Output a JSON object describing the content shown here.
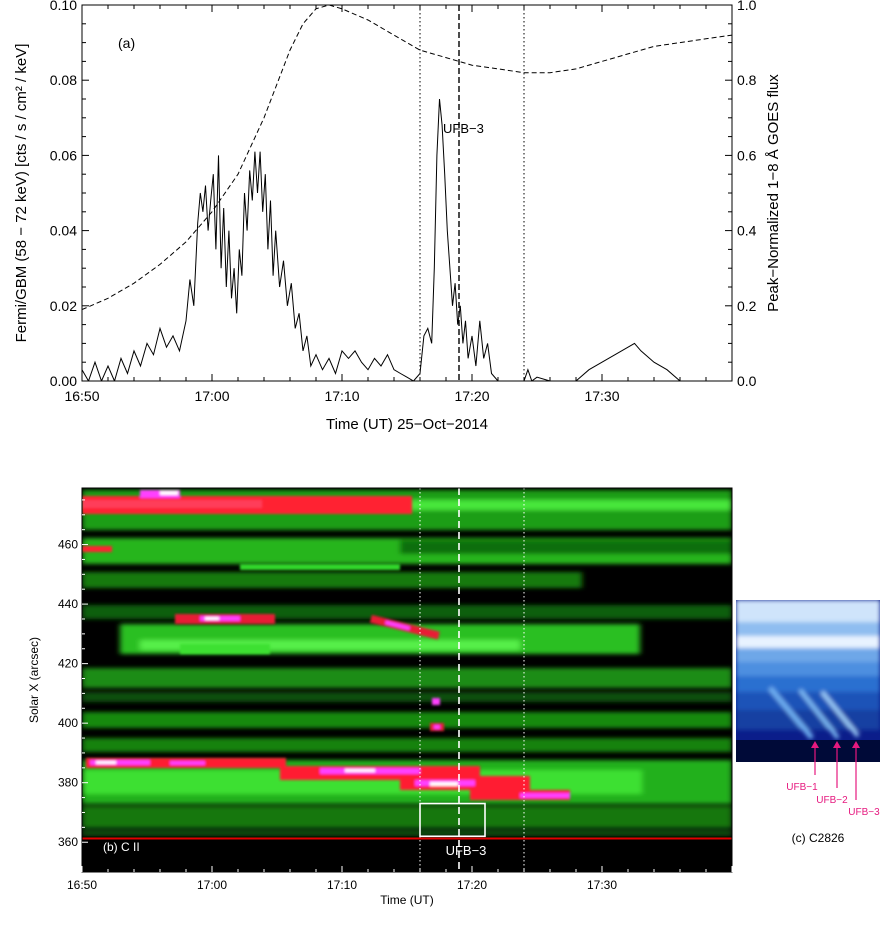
{
  "chart_data": [
    {
      "id": "panel-a",
      "type": "line",
      "panel_label": "(a)",
      "xlabel": "Time (UT) 25−Oct−2014",
      "ylabel": "Fermi/GBM (58 − 72 keV) [cts / s / cm² / keV]",
      "y2label": "Peak−Normalized 1−8 Å GOES flux",
      "xlim": [
        "16:50",
        "17:40"
      ],
      "ylim": [
        0,
        0.1
      ],
      "y2lim": [
        0,
        1.0
      ],
      "xticks": [
        "16:50",
        "17:00",
        "17:10",
        "17:20",
        "17:30"
      ],
      "yticks": [
        "0.00",
        "0.02",
        "0.04",
        "0.06",
        "0.08",
        "0.10"
      ],
      "y2ticks": [
        "0.0",
        "0.2",
        "0.4",
        "0.6",
        "0.8",
        "1.0"
      ],
      "vlines_dotted": [
        "17:16",
        "17:24"
      ],
      "vline_dashed": "17:19",
      "annotation": "UFB−3",
      "series": [
        {
          "style": "solid",
          "axis": "left",
          "points": [
            [
              "16:50.0",
              0.003
            ],
            [
              "16:50.5",
              0.0
            ],
            [
              "16:51.0",
              0.005
            ],
            [
              "16:51.5",
              0.0
            ],
            [
              "16:52.0",
              0.004
            ],
            [
              "16:52.5",
              0.0
            ],
            [
              "16:53.0",
              0.006
            ],
            [
              "16:53.5",
              0.002
            ],
            [
              "16:54.0",
              0.008
            ],
            [
              "16:54.5",
              0.004
            ],
            [
              "16:55.0",
              0.01
            ],
            [
              "16:55.5",
              0.007
            ],
            [
              "16:56.0",
              0.014
            ],
            [
              "16:56.5",
              0.009
            ],
            [
              "16:57.0",
              0.012
            ],
            [
              "16:57.5",
              0.008
            ],
            [
              "16:58.0",
              0.016
            ],
            [
              "16:58.3",
              0.027
            ],
            [
              "16:58.6",
              0.02
            ],
            [
              "16:58.9",
              0.042
            ],
            [
              "16:59.1",
              0.05
            ],
            [
              "16:59.3",
              0.045
            ],
            [
              "16:59.5",
              0.052
            ],
            [
              "16:59.7",
              0.04
            ],
            [
              "16:59.9",
              0.048
            ],
            [
              "17:00.1",
              0.055
            ],
            [
              "17:00.3",
              0.035
            ],
            [
              "17:00.5",
              0.06
            ],
            [
              "17:00.7",
              0.03
            ],
            [
              "17:00.9",
              0.046
            ],
            [
              "17:01.1",
              0.025
            ],
            [
              "17:01.3",
              0.04
            ],
            [
              "17:01.5",
              0.022
            ],
            [
              "17:01.7",
              0.03
            ],
            [
              "17:01.9",
              0.018
            ],
            [
              "17:02.1",
              0.035
            ],
            [
              "17:02.3",
              0.028
            ],
            [
              "17:02.5",
              0.05
            ],
            [
              "17:02.7",
              0.04
            ],
            [
              "17:02.9",
              0.056
            ],
            [
              "17:03.1",
              0.048
            ],
            [
              "17:03.3",
              0.061
            ],
            [
              "17:03.5",
              0.05
            ],
            [
              "17:03.7",
              0.061
            ],
            [
              "17:03.9",
              0.045
            ],
            [
              "17:04.1",
              0.055
            ],
            [
              "17:04.3",
              0.035
            ],
            [
              "17:04.5",
              0.048
            ],
            [
              "17:04.7",
              0.028
            ],
            [
              "17:04.9",
              0.04
            ],
            [
              "17:05.2",
              0.025
            ],
            [
              "17:05.5",
              0.032
            ],
            [
              "17:05.8",
              0.02
            ],
            [
              "17:06.1",
              0.026
            ],
            [
              "17:06.4",
              0.014
            ],
            [
              "17:06.7",
              0.018
            ],
            [
              "17:07.0",
              0.008
            ],
            [
              "17:07.3",
              0.012
            ],
            [
              "17:07.6",
              0.004
            ],
            [
              "17:08.0",
              0.007
            ],
            [
              "17:08.5",
              0.003
            ],
            [
              "17:09.0",
              0.006
            ],
            [
              "17:09.5",
              0.002
            ],
            [
              "17:10.0",
              0.008
            ],
            [
              "17:10.5",
              0.006
            ],
            [
              "17:11.0",
              0.008
            ],
            [
              "17:11.5",
              0.005
            ],
            [
              "17:12.0",
              0.003
            ],
            [
              "17:12.5",
              0.006
            ],
            [
              "17:13.0",
              0.004
            ],
            [
              "17:13.5",
              0.007
            ],
            [
              "17:14.0",
              0.003
            ],
            [
              "17:14.5",
              0.002
            ],
            [
              "17:15.0",
              0.001
            ],
            [
              "17:15.5",
              0.0
            ],
            [
              "17:16.0",
              0.002
            ],
            [
              "17:16.3",
              0.012
            ],
            [
              "17:16.6",
              0.014
            ],
            [
              "17:16.9",
              0.01
            ],
            [
              "17:17.1",
              0.03
            ],
            [
              "17:17.3",
              0.06
            ],
            [
              "17:17.5",
              0.075
            ],
            [
              "17:17.7",
              0.068
            ],
            [
              "17:17.9",
              0.055
            ],
            [
              "17:18.1",
              0.04
            ],
            [
              "17:18.3",
              0.03
            ],
            [
              "17:18.5",
              0.02
            ],
            [
              "17:18.7",
              0.026
            ],
            [
              "17:18.9",
              0.015
            ],
            [
              "17:19.1",
              0.02
            ],
            [
              "17:19.3",
              0.01
            ],
            [
              "17:19.5",
              0.016
            ],
            [
              "17:19.7",
              0.006
            ],
            [
              "17:20.0",
              0.012
            ],
            [
              "17:20.3",
              0.004
            ],
            [
              "17:20.6",
              0.016
            ],
            [
              "17:20.9",
              0.006
            ],
            [
              "17:21.2",
              0.01
            ],
            [
              "17:21.5",
              0.002
            ],
            [
              "17:22.0",
              0.0
            ],
            [
              "17:23.0",
              0.0
            ],
            [
              "17:24.0",
              0.0
            ],
            [
              "17:24.3",
              0.003
            ],
            [
              "17:24.6",
              0.0
            ],
            [
              "17:25.0",
              0.001
            ],
            [
              "17:26.0",
              0.0
            ],
            [
              "17:27.0",
              0.0
            ],
            [
              "17:28.0",
              0.0
            ],
            [
              "17:29.0",
              0.003
            ],
            [
              "17:30.0",
              0.005
            ],
            [
              "17:31.0",
              0.007
            ],
            [
              "17:32.0",
              0.009
            ],
            [
              "17:32.5",
              0.01
            ],
            [
              "17:33.0",
              0.008
            ],
            [
              "17:34.0",
              0.005
            ],
            [
              "17:35.0",
              0.003
            ],
            [
              "17:36.0",
              0.0
            ]
          ]
        },
        {
          "style": "dashed",
          "axis": "right",
          "points": [
            [
              "16:50",
              0.19
            ],
            [
              "16:52",
              0.22
            ],
            [
              "16:54",
              0.26
            ],
            [
              "16:56",
              0.31
            ],
            [
              "16:58",
              0.37
            ],
            [
              "17:00",
              0.45
            ],
            [
              "17:02",
              0.55
            ],
            [
              "17:04",
              0.7
            ],
            [
              "17:06",
              0.88
            ],
            [
              "17:07",
              0.95
            ],
            [
              "17:08",
              0.99
            ],
            [
              "17:09",
              1.0
            ],
            [
              "17:10",
              0.99
            ],
            [
              "17:12",
              0.96
            ],
            [
              "17:14",
              0.92
            ],
            [
              "17:16",
              0.88
            ],
            [
              "17:18",
              0.86
            ],
            [
              "17:20",
              0.84
            ],
            [
              "17:22",
              0.83
            ],
            [
              "17:24",
              0.82
            ],
            [
              "17:26",
              0.82
            ],
            [
              "17:28",
              0.83
            ],
            [
              "17:30",
              0.85
            ],
            [
              "17:32",
              0.87
            ],
            [
              "17:34",
              0.89
            ],
            [
              "17:36",
              0.9
            ],
            [
              "17:38",
              0.91
            ],
            [
              "17:40",
              0.92
            ]
          ]
        }
      ]
    },
    {
      "id": "panel-b",
      "type": "heatmap",
      "panel_label": "(b) C II",
      "xlabel": "Time (UT)",
      "ylabel": "Solar X (arcsec)",
      "xlim": [
        "16:50",
        "17:40"
      ],
      "ylim": [
        350,
        479
      ],
      "xticks": [
        "16:50",
        "17:00",
        "17:10",
        "17:20",
        "17:30"
      ],
      "yticks": [
        "360",
        "380",
        "400",
        "420",
        "440",
        "460"
      ],
      "vlines_dotted": [
        "17:16",
        "17:24"
      ],
      "vline_dashed": "17:19",
      "annotation": "UFB−3",
      "box": {
        "t0": "17:16",
        "t1": "17:21",
        "x0": 362,
        "x1": 373
      },
      "red_line_x": 360,
      "colormap": {
        "low": "#000000",
        "mid": "#26cc1f",
        "high": "#ff1f33",
        "peak": "#ff40ff",
        "max": "#ffffff"
      },
      "bright_features": [
        {
          "t0": "16:50",
          "t1": "17:40",
          "x": 472,
          "width": 8,
          "level": "red"
        },
        {
          "t0": "17:02",
          "t1": "17:10",
          "x": 419,
          "width": 5,
          "level": "red"
        },
        {
          "t0": "17:12",
          "t1": "17:16",
          "x": 416,
          "width": 4,
          "level": "red"
        },
        {
          "t0": "16:50",
          "t1": "17:24",
          "x": 369,
          "width": 8,
          "level": "red"
        },
        {
          "t0": "17:16",
          "t1": "17:19",
          "x": 386,
          "width": 3,
          "level": "magenta"
        }
      ]
    },
    {
      "id": "panel-c",
      "type": "heatmap",
      "panel_label": "(c) C2826",
      "colormap": {
        "low": "#0a1e8c",
        "high": "#eef6ff"
      },
      "markers": [
        "UFB−1",
        "UFB−2",
        "UFB−3"
      ],
      "marker_color": "#e6197f"
    }
  ]
}
